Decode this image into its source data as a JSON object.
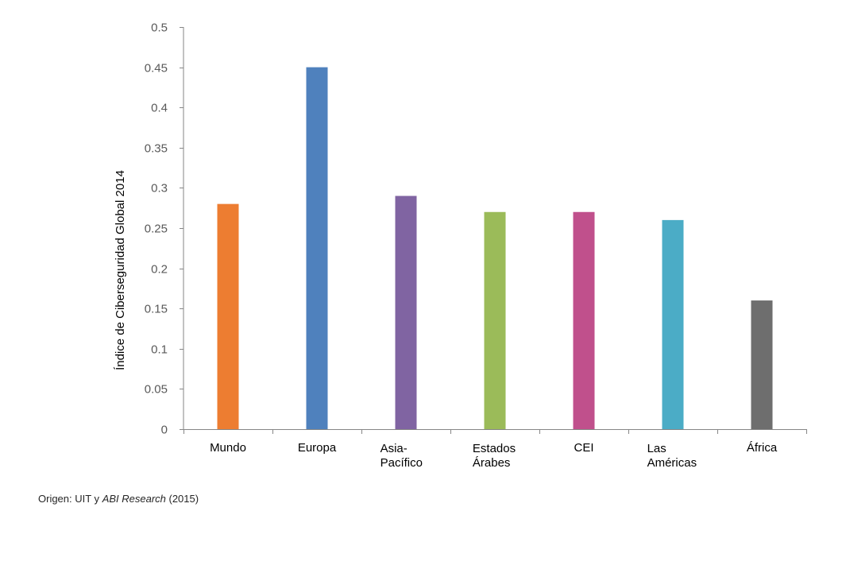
{
  "chart_data": {
    "type": "bar",
    "ylabel": "Índice de Ciberseguridad Global 2014",
    "xlabel": "",
    "ylim": [
      0,
      0.5
    ],
    "yticks": [
      "0",
      "0.05",
      "0.1",
      "0.15",
      "0.2",
      "0.25",
      "0.3",
      "0.35",
      "0.4",
      "0.45",
      "0.5"
    ],
    "categories": [
      {
        "lines": [
          "Mundo"
        ],
        "value": 0.28,
        "color": "#ED7D31"
      },
      {
        "lines": [
          "Europa"
        ],
        "value": 0.45,
        "color": "#4F81BD"
      },
      {
        "lines": [
          "Asia-",
          "Pacífico"
        ],
        "value": 0.29,
        "color": "#8064A2"
      },
      {
        "lines": [
          "Estados",
          "Árabes"
        ],
        "value": 0.27,
        "color": "#9BBB59"
      },
      {
        "lines": [
          "CEI"
        ],
        "value": 0.27,
        "color": "#C0508C"
      },
      {
        "lines": [
          "Las",
          "Américas"
        ],
        "value": 0.26,
        "color": "#4BACC6"
      },
      {
        "lines": [
          "África"
        ],
        "value": 0.16,
        "color": "#6E6E6E"
      }
    ],
    "grid": false,
    "legend": "none"
  },
  "source": {
    "prefix": "Origen: UIT y ",
    "italic": "ABI Research",
    "suffix": " (2015)"
  }
}
